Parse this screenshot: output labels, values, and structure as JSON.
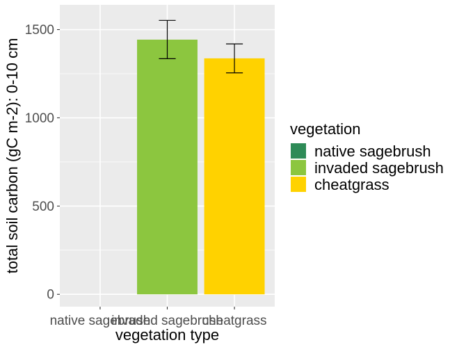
{
  "chart_data": {
    "type": "bar",
    "title": "",
    "xlabel": "vegetation type",
    "ylabel": "total soil carbon (gC m-2): 0-10 cm",
    "categories": [
      "native sagebrush",
      "invaded sagebrush",
      "cheatgrass"
    ],
    "values": [
      null,
      1443,
      1337
    ],
    "error_upper": [
      null,
      1552,
      1419
    ],
    "error_lower": [
      null,
      1335,
      1255
    ],
    "ylim": [
      -70,
      1640
    ],
    "yticks": [
      0,
      500,
      1000,
      1500
    ],
    "yticklabels": [
      "0",
      "500",
      "1000",
      "1500"
    ],
    "colors": [
      "#2E8B57",
      "#8CC63F",
      "#FFD200"
    ],
    "grid": true,
    "legend": {
      "title": "vegetation",
      "placement": "right",
      "items": [
        "native sagebrush",
        "invaded sagebrush",
        "cheatgrass"
      ]
    }
  }
}
